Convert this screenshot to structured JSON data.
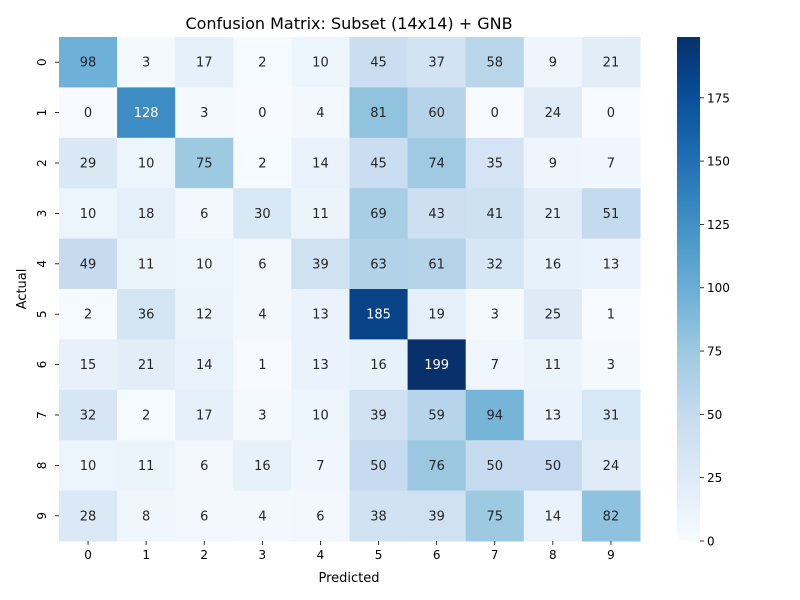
{
  "chart_data": {
    "type": "heatmap",
    "title": "Confusion Matrix: Subset (14x14) + GNB",
    "xlabel": "Predicted",
    "ylabel": "Actual",
    "x_categories": [
      "0",
      "1",
      "2",
      "3",
      "4",
      "5",
      "6",
      "7",
      "8",
      "9"
    ],
    "y_categories": [
      "0",
      "1",
      "2",
      "3",
      "4",
      "5",
      "6",
      "7",
      "8",
      "9"
    ],
    "values": [
      [
        98,
        3,
        17,
        2,
        10,
        45,
        37,
        58,
        9,
        21
      ],
      [
        0,
        128,
        3,
        0,
        4,
        81,
        60,
        0,
        24,
        0
      ],
      [
        29,
        10,
        75,
        2,
        14,
        45,
        74,
        35,
        9,
        7
      ],
      [
        10,
        18,
        6,
        30,
        11,
        69,
        43,
        41,
        21,
        51
      ],
      [
        49,
        11,
        10,
        6,
        39,
        63,
        61,
        32,
        16,
        13
      ],
      [
        2,
        36,
        12,
        4,
        13,
        185,
        19,
        3,
        25,
        1
      ],
      [
        15,
        21,
        14,
        1,
        13,
        16,
        199,
        7,
        11,
        3
      ],
      [
        32,
        2,
        17,
        3,
        10,
        39,
        59,
        94,
        13,
        31
      ],
      [
        10,
        11,
        6,
        16,
        7,
        50,
        76,
        50,
        50,
        24
      ],
      [
        28,
        8,
        6,
        4,
        6,
        38,
        39,
        75,
        14,
        82
      ]
    ],
    "colorbar": {
      "min": 0,
      "max": 199,
      "ticks": [
        0,
        25,
        50,
        75,
        100,
        125,
        150,
        175
      ],
      "colormap": "Blues"
    },
    "colors": {
      "low": "#f7fbff",
      "high": "#08306b",
      "text_dark": "#262626",
      "text_light": "#ffffff"
    }
  }
}
